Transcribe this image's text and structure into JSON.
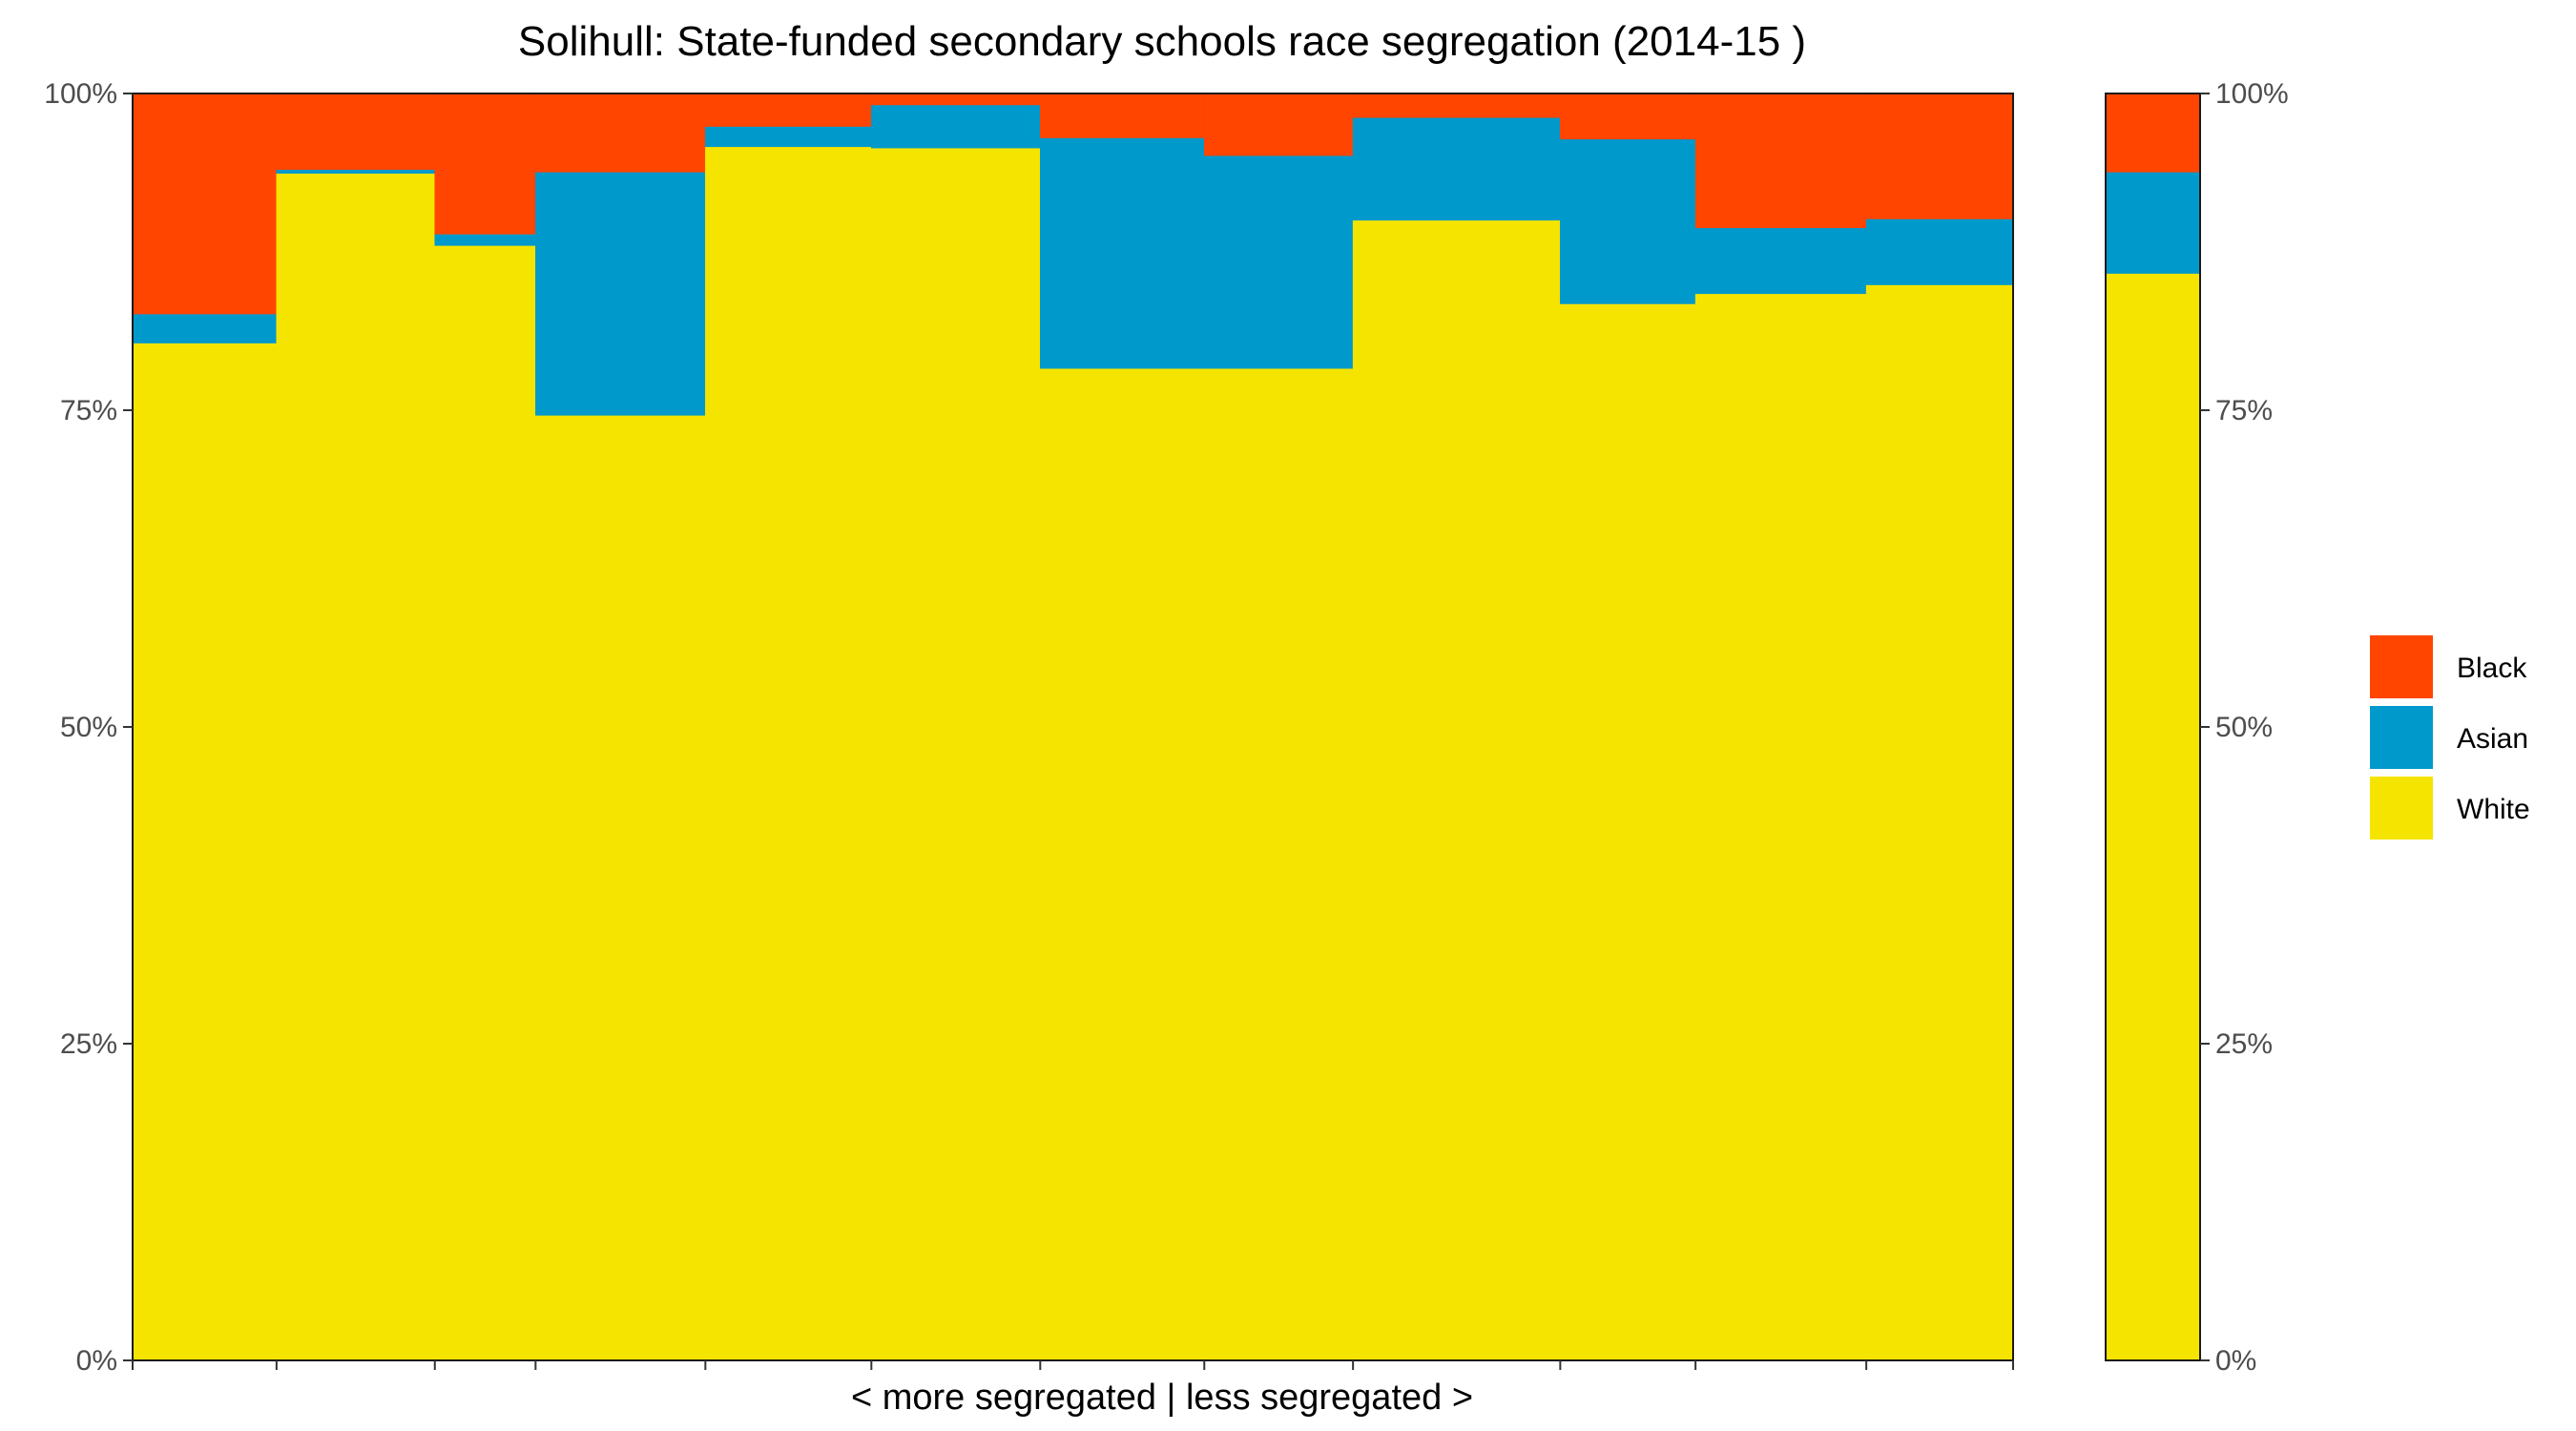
{
  "chart_data": {
    "type": "bar",
    "subtype": "stacked-variable-width-percent",
    "title": "Solihull: State-funded secondary schools race segregation (2014-15 )",
    "xlabel": "< more segregated | less segregated >",
    "ylabel": "",
    "ylim": [
      0,
      100
    ],
    "yticks": [
      "0%",
      "25%",
      "50%",
      "75%",
      "100%"
    ],
    "grid": false,
    "legend": {
      "placement": "right",
      "entries": [
        {
          "name": "Black",
          "color": "#FF4500"
        },
        {
          "name": "Asian",
          "color": "#0099CC"
        },
        {
          "name": "White",
          "color": "#F5E400"
        }
      ]
    },
    "series_order_bottom_to_top": [
      "White",
      "Asian",
      "Black"
    ],
    "groups": [
      {
        "name": "schools",
        "bars": [
          {
            "weight": 15.0,
            "White": 80.3,
            "Asian": 2.3,
            "Black": 17.4
          },
          {
            "weight": 16.5,
            "White": 93.7,
            "Asian": 0.3,
            "Black": 6.0
          },
          {
            "weight": 10.5,
            "White": 88.0,
            "Asian": 0.9,
            "Black": 11.1
          },
          {
            "weight": 17.7,
            "White": 74.6,
            "Asian": 19.2,
            "Black": 6.2
          },
          {
            "weight": 17.3,
            "White": 95.8,
            "Asian": 1.6,
            "Black": 2.6
          },
          {
            "weight": 17.6,
            "White": 95.7,
            "Asian": 3.4,
            "Black": 0.9
          },
          {
            "weight": 17.1,
            "White": 78.3,
            "Asian": 18.2,
            "Black": 3.5
          },
          {
            "weight": 15.5,
            "White": 78.3,
            "Asian": 16.8,
            "Black": 4.9
          },
          {
            "weight": 21.6,
            "White": 90.0,
            "Asian": 8.1,
            "Black": 1.9
          },
          {
            "weight": 14.1,
            "White": 83.4,
            "Asian": 13.0,
            "Black": 3.6
          },
          {
            "weight": 17.8,
            "White": 84.2,
            "Asian": 5.2,
            "Black": 10.6
          },
          {
            "weight": 15.3,
            "White": 84.9,
            "Asian": 5.2,
            "Black": 9.9
          }
        ]
      },
      {
        "name": "overall",
        "bars": [
          {
            "weight": 1,
            "White": 85.8,
            "Asian": 8.0,
            "Black": 6.2
          }
        ]
      }
    ]
  }
}
